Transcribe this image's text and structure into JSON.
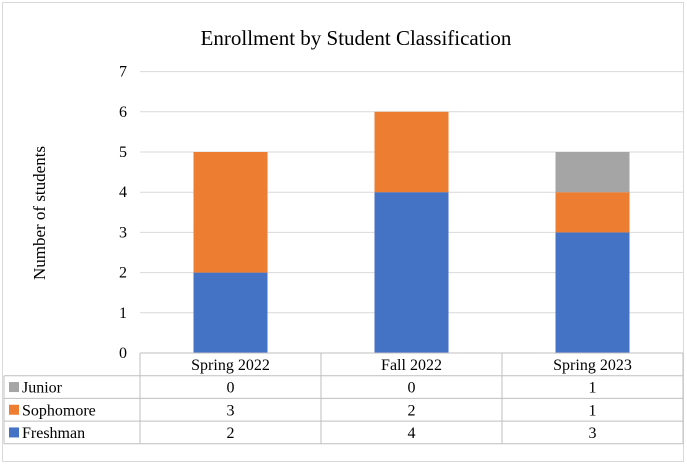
{
  "chart_data": {
    "type": "bar",
    "stacked": true,
    "title": "Enrollment by Student Classification",
    "xlabel": "",
    "ylabel": "Number of students",
    "ylim": [
      0,
      7
    ],
    "yticks": [
      "0",
      "1",
      "2",
      "3",
      "4",
      "5",
      "6",
      "7"
    ],
    "categories": [
      "Spring 2022",
      "Fall 2022",
      "Spring 2023"
    ],
    "series": [
      {
        "name": "Freshman",
        "values": [
          2,
          4,
          3
        ],
        "color": "#4472C4"
      },
      {
        "name": "Sophomore",
        "values": [
          3,
          2,
          1
        ],
        "color": "#ED7D31"
      },
      {
        "name": "Junior",
        "values": [
          0,
          0,
          1
        ],
        "color": "#A5A5A5"
      }
    ],
    "grid": true,
    "legend": "data table below chart"
  }
}
